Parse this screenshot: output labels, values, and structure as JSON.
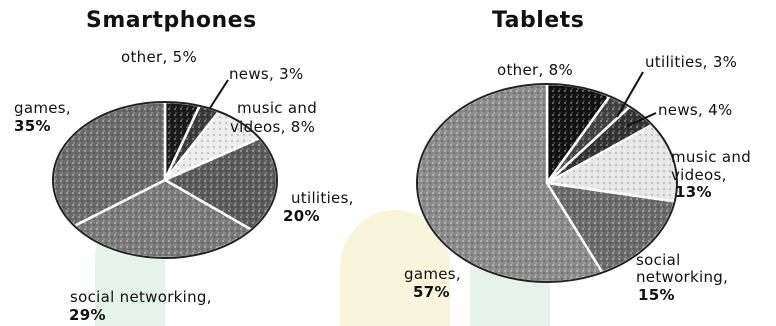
{
  "chart_data": [
    {
      "type": "pie",
      "title": "Smartphones",
      "slices": [
        {
          "label": "other",
          "value": 5,
          "shade": "#1a1a1a"
        },
        {
          "label": "news",
          "value": 3,
          "shade": "#3a3a3a"
        },
        {
          "label": "music and videos",
          "value": 8,
          "shade": "#ececec"
        },
        {
          "label": "utilities",
          "value": 20,
          "shade": "#5a5a5a"
        },
        {
          "label": "social networking",
          "value": 29,
          "shade": "#7a7a7a"
        },
        {
          "label": "games",
          "value": 35,
          "shade": "#6b6b6b"
        }
      ],
      "labels_text": {
        "other": "other, 5%",
        "news": "news, 3%",
        "music_line1": "music and",
        "music_line2": "videos, 8%",
        "utilities_line1": "utilities,",
        "utilities_line2": "20%",
        "social_line1": "social networking,",
        "social_line2": "29%",
        "games_line1": "games,",
        "games_line2": "35%"
      }
    },
    {
      "type": "pie",
      "title": "Tablets",
      "slices": [
        {
          "label": "other",
          "value": 8,
          "shade": "#111111"
        },
        {
          "label": "utilities",
          "value": 3,
          "shade": "#444444"
        },
        {
          "label": "news",
          "value": 4,
          "shade": "#333333"
        },
        {
          "label": "music and videos",
          "value": 13,
          "shade": "#e6e6e6"
        },
        {
          "label": "social networking",
          "value": 15,
          "shade": "#6a6a6a"
        },
        {
          "label": "games",
          "value": 57,
          "shade": "#8a8a8a"
        }
      ],
      "labels_text": {
        "other": "other, 8%",
        "utilities": "utilities, 3%",
        "news": "news, 4%",
        "music_line1": "music and",
        "music_line2": "videos,",
        "music_line3": "13%",
        "social_line1": "social",
        "social_line2": "networking,",
        "social_line3": "15%",
        "games_line1": "games,",
        "games_line2": "57%"
      }
    }
  ],
  "colors": {
    "background": "#ffffff",
    "watermark_green": "#cfe9dd",
    "watermark_yellow": "#f3edc0"
  }
}
